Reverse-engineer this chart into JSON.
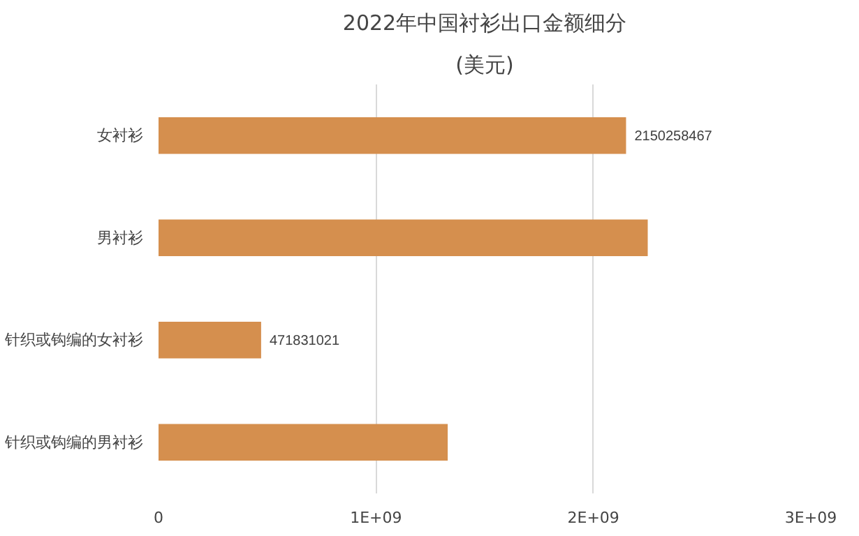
{
  "chart_data": {
    "type": "bar",
    "orientation": "horizontal",
    "title": "2022年中国衬衫出口金额细分",
    "subtitle": "(美元)",
    "categories": [
      "女衬衫",
      "男衬衫",
      "针织或钩编的女衬衫",
      "针织或钩编的男衬衫"
    ],
    "values": [
      2150258467,
      2250000000,
      471831021,
      1330000000
    ],
    "value_labels": [
      "2150258467",
      null,
      "471831021",
      null
    ],
    "color": "#d58f4e",
    "xlim": [
      0,
      3000000000
    ],
    "xticks": [
      0,
      {
        "value": 1000000000,
        "label": "1E+09"
      },
      {
        "value": 2000000000,
        "label": "2E+09"
      },
      {
        "value": 3000000000,
        "label": "3E+09"
      }
    ],
    "grid": "x"
  }
}
